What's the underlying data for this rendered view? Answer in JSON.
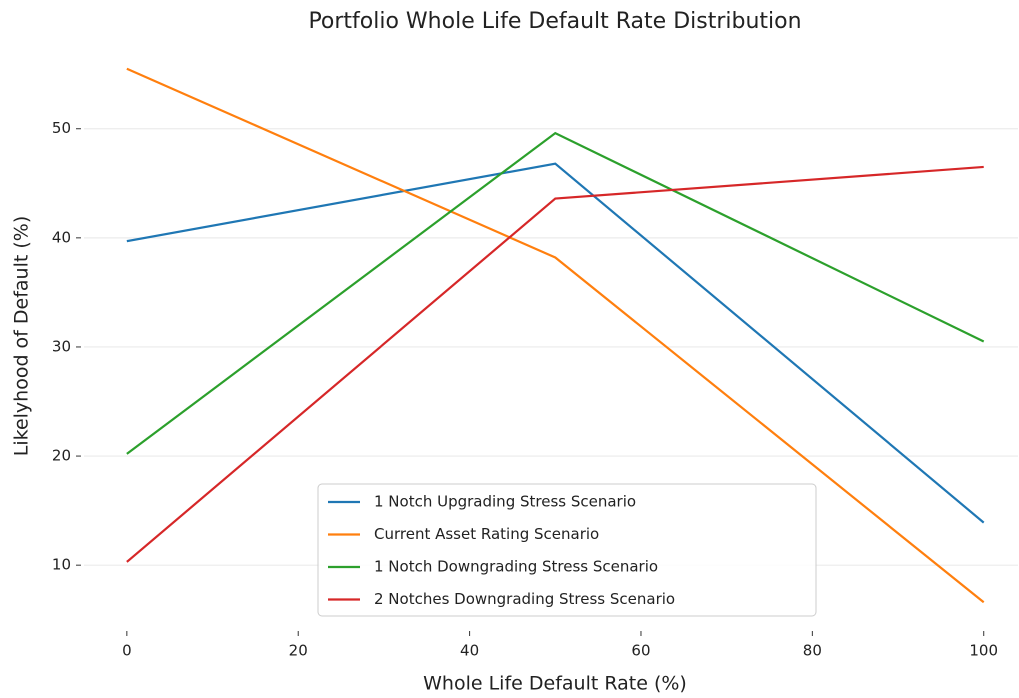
{
  "chart_data": {
    "type": "line",
    "title": "Portfolio Whole Life Default Rate Distribution",
    "x_label": "Whole Life Default Rate (%)",
    "y_label": "Likelyhood of Default (%)",
    "x": [
      0,
      50,
      100
    ],
    "series": [
      {
        "name": "1 Notch Upgrading Stress Scenario",
        "color": "#1f77b4",
        "values": [
          39.7,
          46.8,
          13.9
        ]
      },
      {
        "name": "Current Asset Rating Scenario",
        "color": "#ff7f0e",
        "values": [
          55.5,
          38.2,
          6.6
        ]
      },
      {
        "name": "1 Notch Downgrading Stress Scenario",
        "color": "#2ca02c",
        "values": [
          20.2,
          49.6,
          30.5
        ]
      },
      {
        "name": "2 Notches Downgrading Stress Scenario",
        "color": "#d62728",
        "values": [
          10.3,
          43.6,
          46.5
        ]
      }
    ],
    "xlim": [
      -5,
      104
    ],
    "ylim": [
      4.15,
      57.95
    ],
    "xticks": [
      0,
      20,
      40,
      60,
      80,
      100
    ],
    "yticks": [
      10,
      20,
      30,
      40,
      50
    ],
    "grid": true,
    "legend": "lower center"
  }
}
